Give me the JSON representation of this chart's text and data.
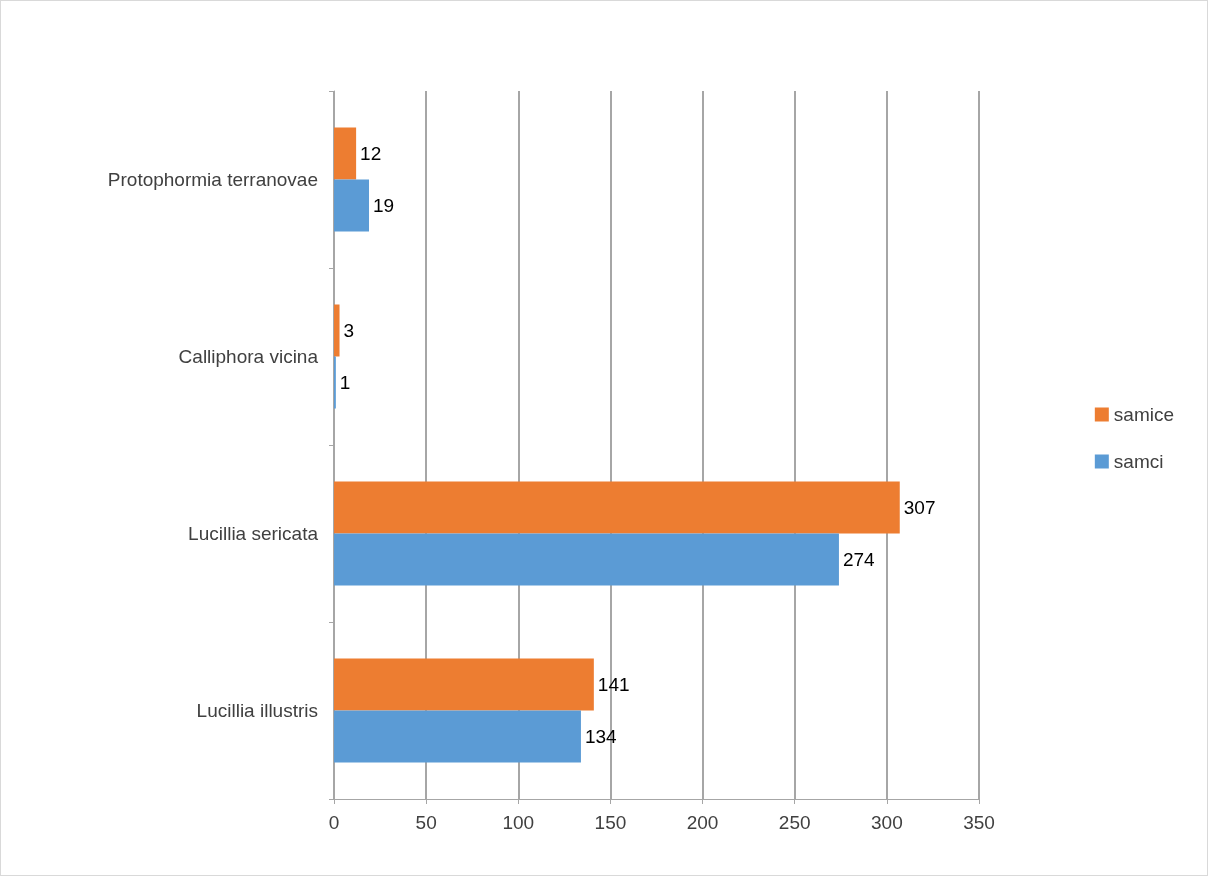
{
  "chart_data": {
    "type": "bar",
    "orientation": "horizontal",
    "categories": [
      "Protophormia terranovae",
      "Calliphora vicina",
      "Lucillia sericata",
      "Lucillia illustris"
    ],
    "series": [
      {
        "name": "samice",
        "color": "#ed7d31",
        "values": [
          12,
          3,
          307,
          141
        ]
      },
      {
        "name": "samci",
        "color": "#5b9bd5",
        "values": [
          19,
          1,
          274,
          134
        ]
      }
    ],
    "xlim": [
      0,
      350
    ],
    "xticks": [
      0,
      50,
      100,
      150,
      200,
      250,
      300,
      350
    ],
    "grid": "x",
    "legend": "right",
    "data_labels": true
  }
}
